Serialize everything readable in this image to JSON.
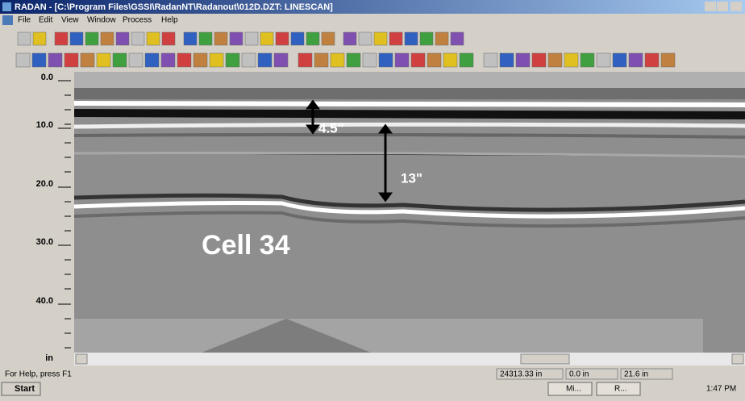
{
  "window": {
    "title": "RADAN - [C:\\Program Files\\GSSI\\RadanNT\\Radanout\\012D.DZT: LINESCAN]",
    "menu": [
      "File",
      "Edit",
      "View",
      "Window",
      "Process",
      "Help"
    ]
  },
  "depth_scale": {
    "labels": [
      "0.0",
      "10.0",
      "20.0",
      "30.0",
      "40.0"
    ],
    "unit": "in"
  },
  "annotations": {
    "top_thickness": "4.5\"",
    "lower_thickness": "13\"",
    "cell": "Cell 34"
  },
  "status_bar": {
    "help": "For Help, press F1",
    "fields": [
      "24313.33 in",
      "0.0 in",
      "21.6 in"
    ]
  },
  "taskbar": {
    "start": "Start",
    "tasks": [
      "Mi...",
      "R..."
    ],
    "clock": "1:47 PM"
  }
}
